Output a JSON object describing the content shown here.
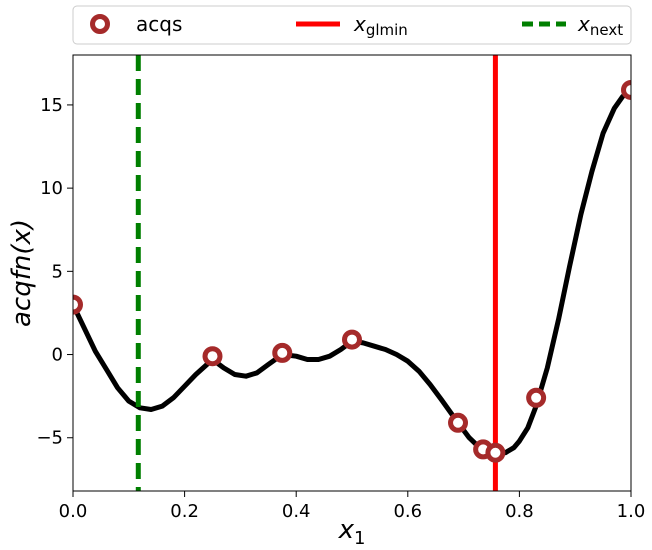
{
  "chart_data": {
    "type": "line",
    "title": "",
    "xlabel": "x",
    "xlabel_sub": "1",
    "ylabel": "acqfn(x)",
    "xlim": [
      0.0,
      1.0
    ],
    "ylim": [
      -8.2,
      18.0
    ],
    "x_ticks": [
      0.0,
      0.2,
      0.4,
      0.6,
      0.8,
      1.0
    ],
    "x_tick_labels": [
      "0.0",
      "0.2",
      "0.4",
      "0.6",
      "0.8",
      "1.0"
    ],
    "y_ticks": [
      -5,
      0,
      5,
      10,
      15
    ],
    "y_tick_labels": [
      "−5",
      "0",
      "5",
      "10",
      "15"
    ],
    "grid": false,
    "legend": {
      "placement": "top",
      "entries": [
        {
          "key": "acqs",
          "label": "acqs",
          "marker": "ring",
          "color": "#a52a2a"
        },
        {
          "key": "xglmin",
          "label_main": "x",
          "label_sub": "glmin",
          "style": "solid",
          "color": "#ff0000"
        },
        {
          "key": "xnext",
          "label_main": "x",
          "label_sub": "next",
          "style": "dashed",
          "color": "#007f00"
        }
      ]
    },
    "curve": {
      "color": "#000000",
      "x": [
        0.0,
        0.02,
        0.04,
        0.06,
        0.08,
        0.1,
        0.12,
        0.14,
        0.16,
        0.18,
        0.2,
        0.22,
        0.25,
        0.27,
        0.29,
        0.31,
        0.33,
        0.35,
        0.375,
        0.4,
        0.42,
        0.44,
        0.46,
        0.48,
        0.5,
        0.52,
        0.54,
        0.56,
        0.58,
        0.6,
        0.62,
        0.64,
        0.66,
        0.69,
        0.71,
        0.735,
        0.757,
        0.775,
        0.79,
        0.8,
        0.815,
        0.83,
        0.85,
        0.87,
        0.89,
        0.91,
        0.93,
        0.95,
        0.97,
        0.985,
        1.0
      ],
      "y": [
        3.0,
        1.6,
        0.2,
        -0.9,
        -2.0,
        -2.8,
        -3.2,
        -3.3,
        -3.1,
        -2.6,
        -1.9,
        -1.2,
        -0.3,
        -0.8,
        -1.2,
        -1.3,
        -1.1,
        -0.6,
        0.0,
        -0.1,
        -0.3,
        -0.3,
        -0.1,
        0.3,
        0.8,
        0.7,
        0.5,
        0.3,
        0.0,
        -0.4,
        -1.0,
        -1.8,
        -2.7,
        -4.1,
        -5.0,
        -5.8,
        -6.0,
        -5.9,
        -5.6,
        -5.2,
        -4.4,
        -3.1,
        -0.8,
        2.1,
        5.3,
        8.4,
        11.0,
        13.3,
        14.8,
        15.5,
        15.9
      ]
    },
    "acqs": {
      "color": "#a52a2a",
      "x": [
        0.0,
        0.25,
        0.375,
        0.5,
        0.69,
        0.735,
        0.757,
        0.83,
        1.0
      ],
      "y": [
        3.0,
        -0.1,
        0.1,
        0.9,
        -4.1,
        -5.7,
        -5.9,
        -2.6,
        15.9
      ]
    },
    "xglmin": {
      "x": 0.757,
      "color": "#ff0000"
    },
    "xnext": {
      "x": 0.117,
      "color": "#007f00"
    }
  }
}
